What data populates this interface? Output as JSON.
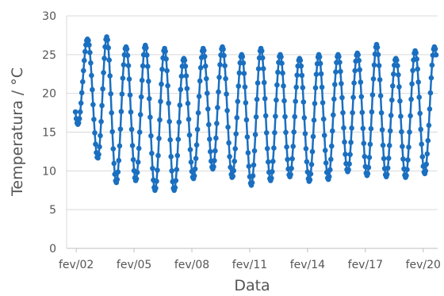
{
  "chart_data": {
    "type": "line",
    "title": "",
    "xlabel": "Data",
    "ylabel": "Temperatura / °C",
    "ylim": [
      0,
      30
    ],
    "yticks": [
      0,
      5,
      10,
      15,
      20,
      25,
      30
    ],
    "xlim": [
      "2024-02-01T12:00",
      "2024-02-20T18:00"
    ],
    "xticks": [
      {
        "label": "fev/02",
        "x": "2024-02-02"
      },
      {
        "label": "fev/05",
        "x": "2024-02-05"
      },
      {
        "label": "fev/08",
        "x": "2024-02-08"
      },
      {
        "label": "fev/11",
        "x": "2024-02-11"
      },
      {
        "label": "fev/14",
        "x": "2024-02-14"
      },
      {
        "label": "fev/17",
        "x": "2024-02-17"
      },
      {
        "label": "fev/20",
        "x": "2024-02-20"
      }
    ],
    "grid": {
      "horizontal": true,
      "vertical": false
    },
    "legend": "none",
    "series_color": "#1a6fc0",
    "daily_extremes": [
      {
        "date": "2024-02-02",
        "min": 16.0,
        "max": 27.0
      },
      {
        "date": "2024-02-03",
        "min": 7.5,
        "max": 27.3
      },
      {
        "date": "2024-02-04",
        "min": 9.5,
        "max": 26.0
      },
      {
        "date": "2024-02-05",
        "min": 8.0,
        "max": 26.2
      },
      {
        "date": "2024-02-06",
        "min": 7.0,
        "max": 25.8
      },
      {
        "date": "2024-02-07",
        "min": 8.0,
        "max": 24.5
      },
      {
        "date": "2024-02-08",
        "min": 10.0,
        "max": 25.8
      },
      {
        "date": "2024-02-09",
        "min": 10.5,
        "max": 26.0
      },
      {
        "date": "2024-02-10",
        "min": 7.8,
        "max": 25.0
      },
      {
        "date": "2024-02-11",
        "min": 8.5,
        "max": 25.8
      },
      {
        "date": "2024-02-12",
        "min": 9.0,
        "max": 25.0
      },
      {
        "date": "2024-02-13",
        "min": 9.5,
        "max": 24.5
      },
      {
        "date": "2024-02-14",
        "min": 7.8,
        "max": 25.0
      },
      {
        "date": "2024-02-15",
        "min": 10.0,
        "max": 25.0
      },
      {
        "date": "2024-02-16",
        "min": 9.8,
        "max": 25.2
      },
      {
        "date": "2024-02-17",
        "min": 9.0,
        "max": 26.3
      },
      {
        "date": "2024-02-18",
        "min": 9.5,
        "max": 24.5
      },
      {
        "date": "2024-02-19",
        "min": 8.8,
        "max": 25.5
      },
      {
        "date": "2024-02-20",
        "min": 10.5,
        "max": 26.0
      }
    ]
  }
}
